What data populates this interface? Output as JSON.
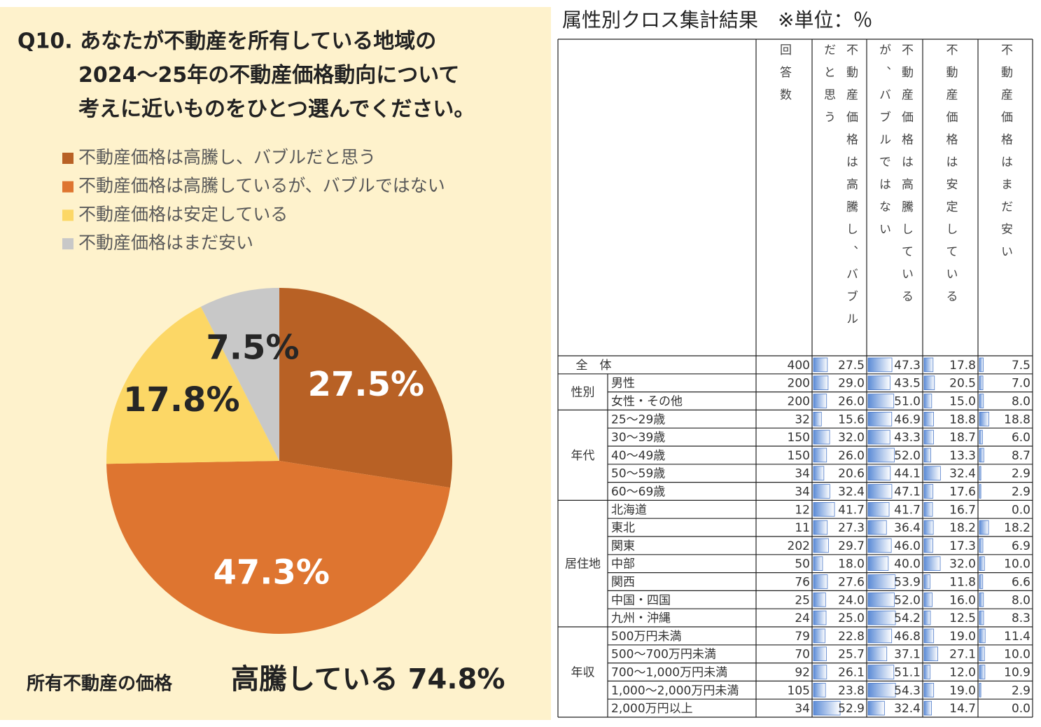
{
  "chart_data": {
    "type": "pie",
    "title": [
      "Q10. あなたが不動産を所有している地域の",
      "2024～25年の不動産価格動向について",
      "考えに近いものをひとつ選んでください。"
    ],
    "categories": [
      "不動産価格は高騰し、バブルだと思う",
      "不動産価格は高騰しているが、バブルではない",
      "不動産価格は安定している",
      "不動産価格はまだ安い"
    ],
    "values": [
      27.5,
      47.3,
      17.8,
      7.5
    ],
    "value_labels": [
      "27.5%",
      "47.3%",
      "17.8%",
      "7.5%"
    ],
    "colors": [
      "#b86125",
      "#de7530",
      "#fcd766",
      "#c8c8c8"
    ],
    "footer_label": "所有不動産の価格",
    "footer_value": "高騰している 74.8%"
  },
  "table": {
    "title": "属性別クロス集計結果　※単位：％",
    "n_header": "回答数",
    "groups": [
      {
        "label": "全　体",
        "rows": [
          {
            "n": 400,
            "values": [
              27.5,
              47.3,
              17.8,
              7.5
            ],
            "value_labels": [
              "27.5",
              "47.3",
              "17.8",
              "7.5"
            ]
          }
        ]
      },
      {
        "label": "性別",
        "rows": [
          {
            "label": "男性",
            "n": 200,
            "values": [
              29.0,
              43.5,
              20.5,
              7.0
            ],
            "value_labels": [
              "29.0",
              "43.5",
              "20.5",
              "7.0"
            ]
          },
          {
            "label": "女性・その他",
            "n": 200,
            "values": [
              26.0,
              51.0,
              15.0,
              8.0
            ],
            "value_labels": [
              "26.0",
              "51.0",
              "15.0",
              "8.0"
            ]
          }
        ]
      },
      {
        "label": "年代",
        "rows": [
          {
            "label": "25～29歳",
            "n": 32,
            "values": [
              15.6,
              46.9,
              18.8,
              18.8
            ],
            "value_labels": [
              "15.6",
              "46.9",
              "18.8",
              "18.8"
            ]
          },
          {
            "label": "30～39歳",
            "n": 150,
            "values": [
              32.0,
              43.3,
              18.7,
              6.0
            ],
            "value_labels": [
              "32.0",
              "43.3",
              "18.7",
              "6.0"
            ]
          },
          {
            "label": "40～49歳",
            "n": 150,
            "values": [
              26.0,
              52.0,
              13.3,
              8.7
            ],
            "value_labels": [
              "26.0",
              "52.0",
              "13.3",
              "8.7"
            ]
          },
          {
            "label": "50～59歳",
            "n": 34,
            "values": [
              20.6,
              44.1,
              32.4,
              2.9
            ],
            "value_labels": [
              "20.6",
              "44.1",
              "32.4",
              "2.9"
            ]
          },
          {
            "label": "60～69歳",
            "n": 34,
            "values": [
              32.4,
              47.1,
              17.6,
              2.9
            ],
            "value_labels": [
              "32.4",
              "47.1",
              "17.6",
              "2.9"
            ]
          }
        ]
      },
      {
        "label": "居住地",
        "rows": [
          {
            "label": "北海道",
            "n": 12,
            "values": [
              41.7,
              41.7,
              16.7,
              0.0
            ],
            "value_labels": [
              "41.7",
              "41.7",
              "16.7",
              "0.0"
            ]
          },
          {
            "label": "東北",
            "n": 11,
            "values": [
              27.3,
              36.4,
              18.2,
              18.2
            ],
            "value_labels": [
              "27.3",
              "36.4",
              "18.2",
              "18.2"
            ]
          },
          {
            "label": "関東",
            "n": 202,
            "values": [
              29.7,
              46.0,
              17.3,
              6.9
            ],
            "value_labels": [
              "29.7",
              "46.0",
              "17.3",
              "6.9"
            ]
          },
          {
            "label": "中部",
            "n": 50,
            "values": [
              18.0,
              40.0,
              32.0,
              10.0
            ],
            "value_labels": [
              "18.0",
              "40.0",
              "32.0",
              "10.0"
            ]
          },
          {
            "label": "関西",
            "n": 76,
            "values": [
              27.6,
              53.9,
              11.8,
              6.6
            ],
            "value_labels": [
              "27.6",
              "53.9",
              "11.8",
              "6.6"
            ]
          },
          {
            "label": "中国・四国",
            "n": 25,
            "values": [
              24.0,
              52.0,
              16.0,
              8.0
            ],
            "value_labels": [
              "24.0",
              "52.0",
              "16.0",
              "8.0"
            ]
          },
          {
            "label": "九州・沖縄",
            "n": 24,
            "values": [
              25.0,
              54.2,
              12.5,
              8.3
            ],
            "value_labels": [
              "25.0",
              "54.2",
              "12.5",
              "8.3"
            ]
          }
        ]
      },
      {
        "label": "年収",
        "rows": [
          {
            "label": "500万円未満",
            "n": 79,
            "values": [
              22.8,
              46.8,
              19.0,
              11.4
            ],
            "value_labels": [
              "22.8",
              "46.8",
              "19.0",
              "11.4"
            ]
          },
          {
            "label": "500～700万円未満",
            "n": 70,
            "values": [
              25.7,
              37.1,
              27.1,
              10.0
            ],
            "value_labels": [
              "25.7",
              "37.1",
              "27.1",
              "10.0"
            ]
          },
          {
            "label": "700～1,000万円未満",
            "n": 92,
            "values": [
              26.1,
              51.1,
              12.0,
              10.9
            ],
            "value_labels": [
              "26.1",
              "51.1",
              "12.0",
              "10.9"
            ]
          },
          {
            "label": "1,000～2,000万円未満",
            "n": 105,
            "values": [
              23.8,
              54.3,
              19.0,
              2.9
            ],
            "value_labels": [
              "23.8",
              "54.3",
              "19.0",
              "2.9"
            ]
          },
          {
            "label": "2,000万円以上",
            "n": 34,
            "values": [
              52.9,
              32.4,
              14.7,
              0.0
            ],
            "value_labels": [
              "52.9",
              "32.4",
              "14.7",
              "0.0"
            ]
          }
        ]
      }
    ]
  }
}
